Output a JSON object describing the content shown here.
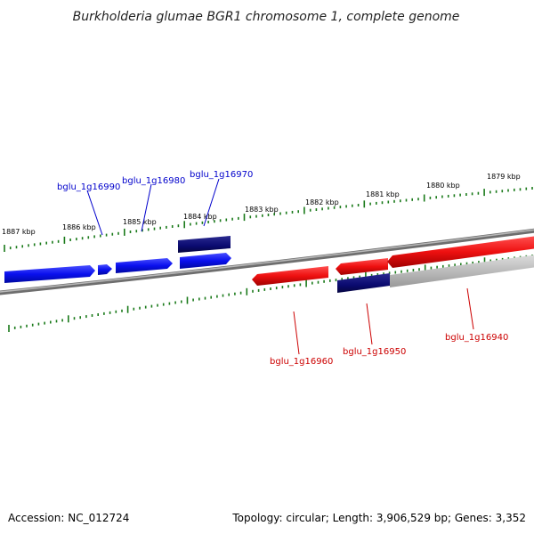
{
  "title": "Burkholderia glumae BGR1 chromosome 1, complete genome",
  "footer": {
    "accession": "Accession: NC_012724",
    "summary": "Topology: circular; Length: 3,906,529 bp; Genes: 3,352"
  },
  "colors": {
    "forward_gene": "#0a10ee",
    "forward_gene_dark": "#0a0a70",
    "reverse_gene": "#ee1010",
    "reverse_gene_dark": "#0a0a70",
    "backbone": "#8a8a8a",
    "ticks": "#1a7a1a",
    "label_blue": "#0000cc",
    "label_red": "#cc0000"
  },
  "ticks": [
    {
      "label": "1887 kbp"
    },
    {
      "label": "1886 kbp"
    },
    {
      "label": "1885 kbp"
    },
    {
      "label": "1884 kbp"
    },
    {
      "label": "1883 kbp"
    },
    {
      "label": "1882 kbp"
    },
    {
      "label": "1881 kbp"
    },
    {
      "label": "1880 kbp"
    },
    {
      "label": "1879 kbp"
    }
  ],
  "forward_genes": [
    {
      "label": "bglu_1g16990"
    },
    {
      "label": "bglu_1g16980"
    },
    {
      "label": "bglu_1g16970"
    }
  ],
  "reverse_genes": [
    {
      "label": "bglu_1g16960"
    },
    {
      "label": "bglu_1g16950"
    },
    {
      "label": "bglu_1g16940"
    }
  ]
}
